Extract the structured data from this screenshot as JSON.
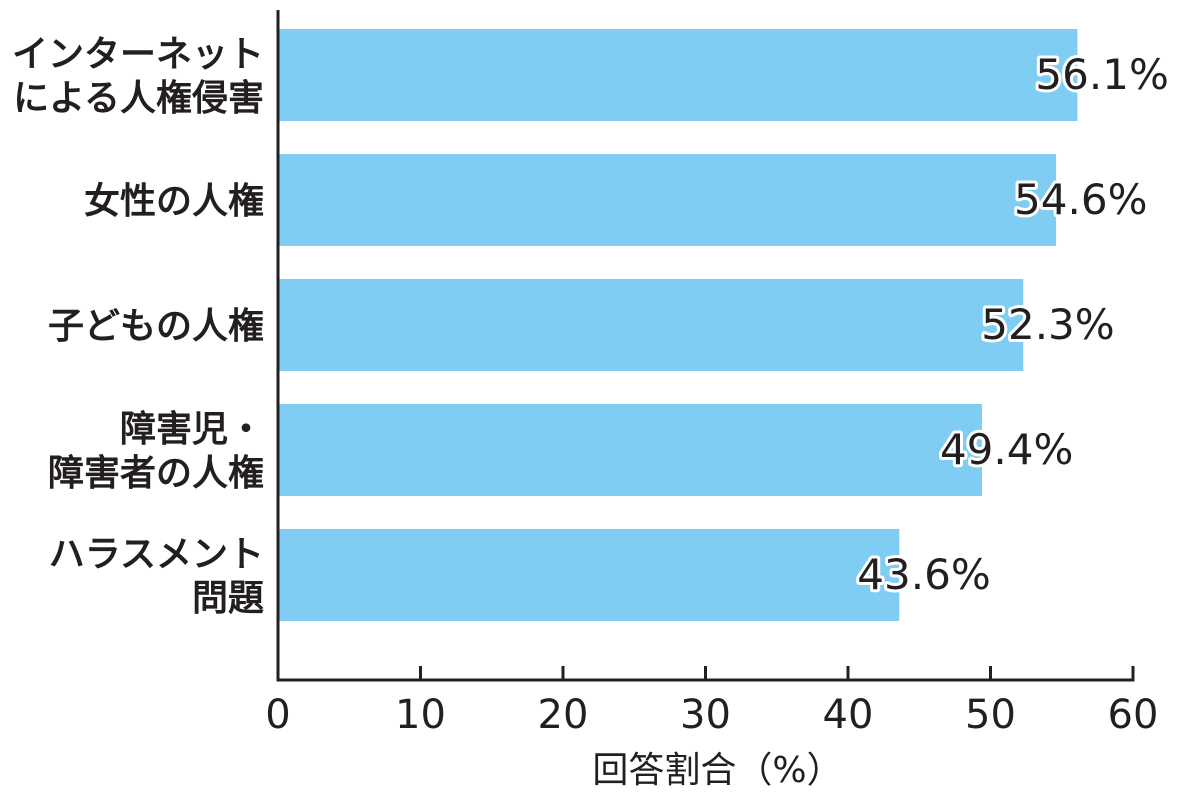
{
  "chart_data": {
    "type": "bar",
    "orientation": "horizontal",
    "categories": [
      [
        "インターネット",
        "による人権侵害"
      ],
      [
        "女性の人権"
      ],
      [
        "子どもの人権"
      ],
      [
        "障害児・",
        "障害者の人権"
      ],
      [
        "ハラスメント",
        "問題"
      ]
    ],
    "values": [
      56.1,
      54.6,
      52.3,
      49.4,
      43.6
    ],
    "data_labels": [
      "56.1%",
      "54.6%",
      "52.3%",
      "49.4%",
      "43.6%"
    ],
    "xlabel": "回答割合（%）",
    "ylabel": "",
    "title": "",
    "xlim": [
      0,
      60
    ],
    "xticks": [
      0,
      10,
      20,
      30,
      40,
      50,
      60
    ],
    "bar_color": "#7fcdf2",
    "axis_color": "#231f20",
    "grid": false,
    "legend": "none"
  }
}
